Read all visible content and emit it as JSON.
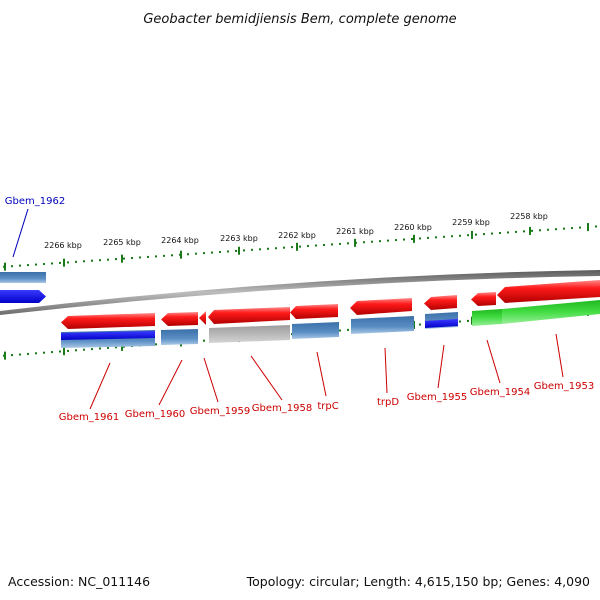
{
  "title": "Geobacter bemidjiensis Bem, complete genome",
  "footer": {
    "accession": "Accession: NC_011146",
    "summary": "Topology: circular; Length: 4,615,150 bp; Genes: 4,090"
  },
  "scale_labels": [
    "2266 kbp",
    "2265 kbp",
    "2264 kbp",
    "2263 kbp",
    "2262 kbp",
    "2261 kbp",
    "2260 kbp",
    "2259 kbp",
    "2258 kbp"
  ],
  "gene_labels": [
    "Gbem_1962",
    "Gbem_1961",
    "Gbem_1960",
    "Gbem_1959",
    "Gbem_1958",
    "trpC",
    "trpD",
    "Gbem_1955",
    "Gbem_1954",
    "Gbem_1953"
  ],
  "colors": {
    "gene_red": "#e8161e",
    "cds_blue": "#4a80b8",
    "highlight_blue": "#1010ee",
    "pseudo_gray": "#b4b4b4",
    "green": "#33cc33",
    "scale_green": "#1a7a1a",
    "label_red": "#cc0000",
    "label_blue": "#0000bb"
  }
}
